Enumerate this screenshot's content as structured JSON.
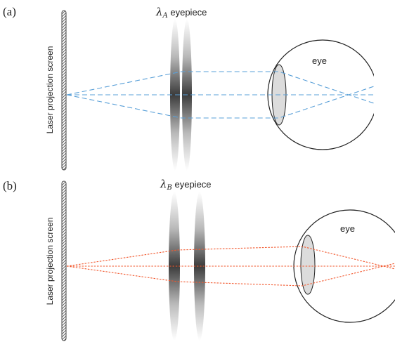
{
  "panels": [
    {
      "tag": "(a)",
      "screen_label": "Laser projection screen",
      "lens_symbol": "λ",
      "lens_subscript": "A",
      "lens_label": " eyepiece",
      "eye_label": "eye",
      "ray_color": "#5aa0d8"
    },
    {
      "tag": "(b)",
      "screen_label": "Laser projection screen",
      "lens_symbol": "λ",
      "lens_subscript": "B",
      "lens_label": " eyepiece",
      "eye_label": "eye",
      "ray_color": "#f2592f"
    }
  ]
}
